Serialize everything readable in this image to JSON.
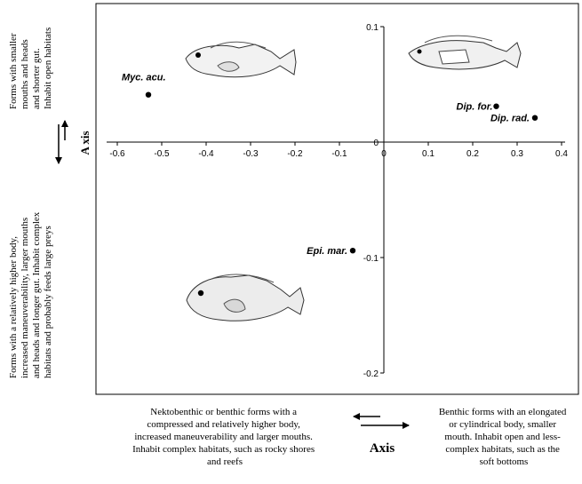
{
  "chart_data": {
    "type": "scatter",
    "xlim": [
      -0.6,
      0.4
    ],
    "ylim": [
      -0.2,
      0.1
    ],
    "x_ticks": [
      "-0.6",
      "-0.5",
      "-0.4",
      "-0.3",
      "-0.2",
      "-0.1",
      "0",
      "0.1",
      "0.2",
      "0.3",
      "0.4"
    ],
    "y_ticks": [
      "0.1",
      "0",
      "-0.1",
      "-0.2"
    ],
    "grid": false,
    "points": [
      {
        "label": "Myc. acu.",
        "x": -0.53,
        "y": 0.041
      },
      {
        "label": "Dip. for.",
        "x": 0.253,
        "y": 0.031
      },
      {
        "label": "Dip. rad.",
        "x": 0.34,
        "y": 0.021
      },
      {
        "label": "Epi. mar.",
        "x": -0.07,
        "y": -0.094
      }
    ],
    "x_axis_title": "Axis",
    "y_axis_title": "A xis",
    "annotations": {
      "left_top": [
        "Forms with smaller",
        "mouths and  heads",
        "and shorter gut.",
        "Inhabit open habitats"
      ],
      "left_bottom": [
        "Forms with a relatively higher body,",
        "increased maneuverability, larger mouths",
        "and heads and longer gut. Inhabit complex",
        "habitats and probably feeds large preys"
      ],
      "bottom_left": [
        "Nektobenthic or benthic forms with a",
        "compressed and relatively higher body,",
        "increased maneuverability and larger mouths.",
        "Inhabit complex habitats, such as rocky shores",
        "and reefs"
      ],
      "bottom_right": [
        "Benthic forms with an elongated",
        "or cylindrical body, smaller",
        "mouth. Inhabit open and less-",
        "complex habitats, such as the",
        "soft bottoms"
      ]
    }
  }
}
